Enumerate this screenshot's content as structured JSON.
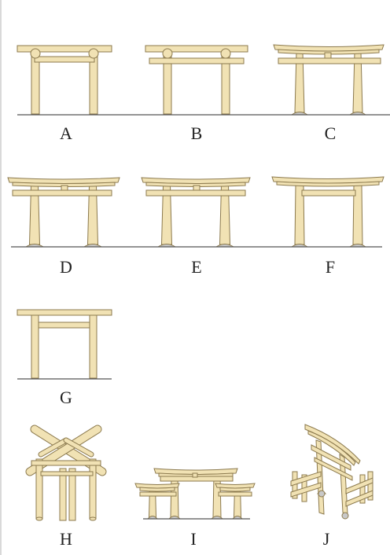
{
  "colors": {
    "wood_fill": "#f1e2b4",
    "wood_stroke": "#8c7a4e",
    "ground": "#555555",
    "stone": "#c8c8c8",
    "label": "#222222"
  },
  "gates": [
    {
      "key": "A",
      "style": "gate-a"
    },
    {
      "key": "B",
      "style": "gate-b"
    },
    {
      "key": "C",
      "style": "gate-c"
    },
    {
      "key": "D",
      "style": "gate-d"
    },
    {
      "key": "E",
      "style": "gate-e"
    },
    {
      "key": "F",
      "style": "gate-f"
    },
    {
      "key": "G",
      "style": "gate-g"
    },
    {
      "key": "H",
      "style": "gate-h"
    },
    {
      "key": "I",
      "style": "gate-i"
    },
    {
      "key": "J",
      "style": "gate-j"
    }
  ]
}
